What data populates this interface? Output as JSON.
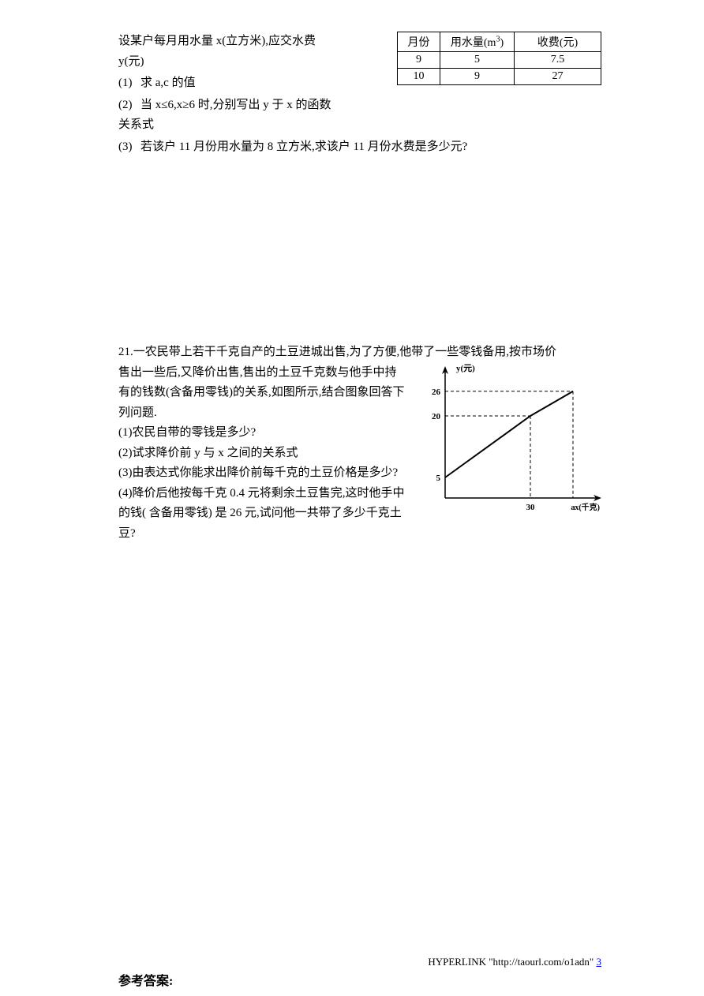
{
  "q20": {
    "intro": "设某户每月用水量 x(立方米),应交水费 y(元)",
    "items": [
      {
        "num": "(1)",
        "text": "求 a,c 的值"
      },
      {
        "num": "(2)",
        "text": "当 x≤6,x≥6 时,分别写出 y 于 x 的函数关系式"
      },
      {
        "num": "(3)",
        "text": "若该户 11 月份用水量为 8 立方米,求该户 11 月份水费是多少元?"
      }
    ],
    "table": {
      "headers": [
        "月份",
        "用水量(m³)",
        "收费(元)"
      ],
      "rows": [
        [
          "9",
          "5",
          "7.5"
        ],
        [
          "10",
          "9",
          "27"
        ]
      ],
      "border_color": "#000000",
      "cell_padding": 2
    }
  },
  "q21": {
    "num": "21.",
    "intro_full": "一农民带上若干千克自产的土豆进城出售,为了方便,他带了一些零钱备用,按市场价",
    "intro_narrow": [
      "售出一些后,又降价出售,售出的土豆千克数与他手中持",
      "有的钱数(含备用零钱)的关系,如图所示,结合图象回答下",
      "列问题."
    ],
    "items": [
      "(1)农民自带的零钱是多少?",
      "(2)试求降价前 y 与 x 之间的关系式",
      "(3)由表达式你能求出降价前每千克的土豆价格是多少?",
      "(4)降价后他按每千克 0.4 元将剩余土豆售完,这时他手中",
      "的钱( 含备用零钱) 是 26 元,试问他一共带了多少千克土",
      "豆?"
    ],
    "chart": {
      "type": "line",
      "y_label": "y(元)",
      "x_label": "x(千克)",
      "y_ticks": [
        5,
        20,
        26
      ],
      "x_ticks": [
        "30",
        "a"
      ],
      "points": [
        {
          "x": 0,
          "y": 5
        },
        {
          "x": 30,
          "y": 20
        },
        {
          "x": 45,
          "y": 26
        }
      ],
      "axis_color": "#000000",
      "line_color": "#000000",
      "dash_color": "#000000",
      "line_width": 2,
      "font_size": 11,
      "label_font_weight": "bold",
      "x_values_for_ticks": [
        30,
        45
      ]
    }
  },
  "answer_heading": "参考答案:",
  "footer": {
    "hyperlink_label": "HYPERLINK \"http://taourl.com/o1adn\" ",
    "pagenum": "3"
  }
}
